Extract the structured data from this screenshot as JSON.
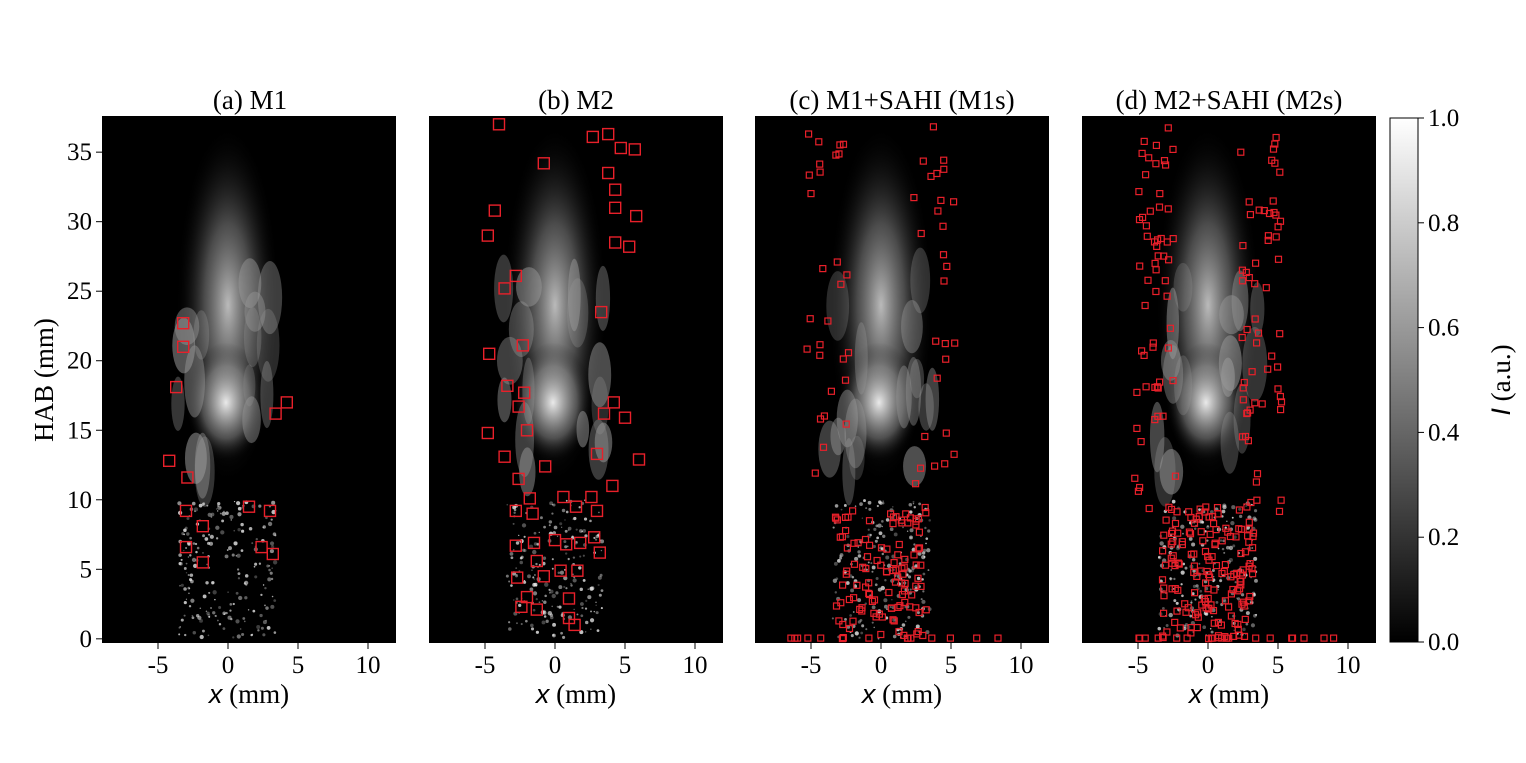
{
  "chart_data": {
    "type": "image-grid with detection boxes",
    "panels": [
      {
        "title": "(a) M1",
        "boxes": [
          [
            -3.2,
            22.7
          ],
          [
            -3.2,
            21.0
          ],
          [
            -3.7,
            18.1
          ],
          [
            3.4,
            16.2
          ],
          [
            4.2,
            17.0
          ],
          [
            -4.2,
            12.8
          ],
          [
            -2.9,
            11.6
          ],
          [
            -3.0,
            9.2
          ],
          [
            -1.8,
            8.1
          ],
          [
            -3.0,
            6.6
          ],
          [
            -1.8,
            5.5
          ],
          [
            1.5,
            9.5
          ],
          [
            3.0,
            9.2
          ],
          [
            2.4,
            6.6
          ],
          [
            3.2,
            6.1
          ]
        ]
      },
      {
        "title": "(b) M2",
        "boxes": [
          [
            -4.0,
            37.0
          ],
          [
            -0.8,
            34.2
          ],
          [
            2.7,
            36.1
          ],
          [
            3.8,
            36.3
          ],
          [
            4.7,
            35.3
          ],
          [
            5.7,
            35.2
          ],
          [
            3.8,
            33.5
          ],
          [
            4.3,
            32.3
          ],
          [
            4.3,
            31.0
          ],
          [
            5.8,
            30.4
          ],
          [
            4.3,
            28.5
          ],
          [
            5.3,
            28.2
          ],
          [
            -4.3,
            30.8
          ],
          [
            -4.8,
            29.0
          ],
          [
            -2.8,
            26.1
          ],
          [
            -3.6,
            25.2
          ],
          [
            3.3,
            23.5
          ],
          [
            -2.3,
            21.1
          ],
          [
            -4.7,
            20.5
          ],
          [
            -3.4,
            18.2
          ],
          [
            -2.2,
            17.7
          ],
          [
            -2.6,
            16.7
          ],
          [
            -4.8,
            14.8
          ],
          [
            -2.0,
            15.0
          ],
          [
            -3.6,
            13.1
          ],
          [
            3.5,
            16.2
          ],
          [
            4.2,
            17.0
          ],
          [
            5.0,
            15.9
          ],
          [
            3.0,
            13.3
          ],
          [
            4.1,
            11.0
          ],
          [
            -0.7,
            12.4
          ],
          [
            -2.6,
            11.5
          ],
          [
            -1.8,
            10.1
          ],
          [
            -2.8,
            9.2
          ],
          [
            -1.6,
            9.0
          ],
          [
            0.6,
            10.2
          ],
          [
            1.5,
            9.5
          ],
          [
            2.6,
            10.2
          ],
          [
            3.0,
            9.2
          ],
          [
            -2.8,
            6.7
          ],
          [
            -1.5,
            6.9
          ],
          [
            0.0,
            7.1
          ],
          [
            0.8,
            6.8
          ],
          [
            1.8,
            6.9
          ],
          [
            2.8,
            7.3
          ],
          [
            3.2,
            6.2
          ],
          [
            -1.3,
            5.6
          ],
          [
            0.4,
            4.9
          ],
          [
            1.6,
            4.9
          ],
          [
            -2.7,
            4.4
          ],
          [
            -0.8,
            4.5
          ],
          [
            -2.0,
            3.0
          ],
          [
            -2.4,
            2.3
          ],
          [
            -1.3,
            2.1
          ],
          [
            1.0,
            2.9
          ],
          [
            1.0,
            1.5
          ],
          [
            1.4,
            1.0
          ],
          [
            6.0,
            12.9
          ]
        ]
      },
      {
        "title": "(c) M1+SAHI (M1s)",
        "boxes": []
      },
      {
        "title": "(d) M2+SAHI (M2s)",
        "boxes": []
      }
    ],
    "x_axis": {
      "label_var": "x",
      "label_unit": " (mm)",
      "ticks": [
        "-5",
        "0",
        "5",
        "10"
      ],
      "range": [
        -9.0,
        12.0
      ]
    },
    "y_axis": {
      "label": "HAB (mm)",
      "ticks": [
        "0",
        "5",
        "10",
        "15",
        "20",
        "25",
        "30",
        "35"
      ],
      "range": [
        -0.3,
        37.6
      ]
    },
    "colorbar": {
      "label_var": "I",
      "label_unit": " (a.u.)",
      "ticks": [
        "0.0",
        "0.2",
        "0.4",
        "0.6",
        "0.8",
        "1.0"
      ],
      "range": [
        0.0,
        1.0
      ]
    },
    "box_color": "#e8202a",
    "image_background": "#000000"
  }
}
